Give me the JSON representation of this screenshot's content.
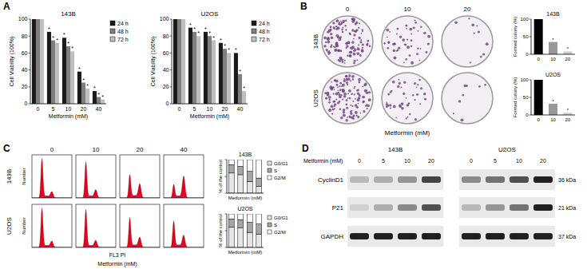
{
  "panel_labels": [
    "A",
    "B",
    "C",
    "D"
  ],
  "chart_data": [
    {
      "type": "bar",
      "title": "143B",
      "categories": [
        "0",
        "5",
        "10",
        "20",
        "40"
      ],
      "series": [
        {
          "name": "24 h",
          "color": "#1a1a1a",
          "values": [
            100,
            85,
            78,
            38,
            15
          ]
        },
        {
          "name": "48 h",
          "color": "#7f7f7f",
          "values": [
            100,
            75,
            68,
            25,
            8
          ]
        },
        {
          "name": "72 h",
          "color": "#bfbfbf",
          "values": [
            100,
            72,
            62,
            18,
            5
          ]
        }
      ],
      "xlabel": "Metformin (mM)",
      "ylabel": "Cell Viability (100%)",
      "ylim": [
        0,
        100
      ],
      "yticks": [
        0,
        20,
        40,
        60,
        80,
        100
      ],
      "legend": "right",
      "annotation": "*"
    },
    {
      "type": "bar",
      "title": "U2OS",
      "categories": [
        "0",
        "5",
        "10",
        "20",
        "40"
      ],
      "series": [
        {
          "name": "24 h",
          "color": "#1a1a1a",
          "values": [
            100,
            90,
            85,
            72,
            60
          ]
        },
        {
          "name": "48 h",
          "color": "#7f7f7f",
          "values": [
            100,
            85,
            80,
            65,
            35
          ]
        },
        {
          "name": "72 h",
          "color": "#bfbfbf",
          "values": [
            100,
            80,
            75,
            60,
            15
          ]
        }
      ],
      "xlabel": "Metformin (mM)",
      "ylabel": "Cell Viability (100%)",
      "ylim": [
        0,
        100
      ],
      "yticks": [
        0,
        20,
        40,
        60,
        80,
        100
      ],
      "legend": "right",
      "annotation": "*"
    },
    {
      "type": "bar",
      "title": "143B",
      "categories": [
        "0",
        "10",
        "20"
      ],
      "values": [
        100,
        35,
        8
      ],
      "colors": [
        "#000000",
        "#999999",
        "#cccccc"
      ],
      "ylabel": "Formed colony (%)",
      "ylim": [
        0,
        100
      ],
      "yticks": [
        0,
        50,
        100
      ],
      "annotation": "*"
    },
    {
      "type": "bar",
      "title": "U2OS",
      "categories": [
        "0",
        "10",
        "20"
      ],
      "values": [
        100,
        32,
        6
      ],
      "colors": [
        "#000000",
        "#999999",
        "#cccccc"
      ],
      "ylabel": "Formed colony (%)",
      "ylim": [
        0,
        100
      ],
      "yticks": [
        0,
        50,
        100
      ],
      "annotation": "*"
    },
    {
      "type": "bar",
      "stacked": true,
      "title": "143B",
      "categories": [
        "0",
        "10",
        "20",
        "40"
      ],
      "series": [
        {
          "name": "G0/G1",
          "color": "#e6e6e6",
          "values": [
            60,
            55,
            35,
            20
          ]
        },
        {
          "name": "S",
          "color": "#a6a6a6",
          "values": [
            25,
            25,
            30,
            25
          ]
        },
        {
          "name": "G2/M",
          "color": "#ffffff",
          "values": [
            15,
            20,
            35,
            55
          ]
        }
      ],
      "xlabel": "Metformin (mM)",
      "ylabel": "% of the control",
      "ylim": [
        0,
        100
      ],
      "yticks": [
        0,
        50,
        100
      ],
      "tick_labels": false,
      "legend": "right"
    },
    {
      "type": "bar",
      "stacked": true,
      "title": "U2OS",
      "categories": [
        "0",
        "10",
        "20",
        "40"
      ],
      "series": [
        {
          "name": "G0/G1",
          "color": "#e6e6e6",
          "values": [
            60,
            58,
            45,
            40
          ]
        },
        {
          "name": "S",
          "color": "#a6a6a6",
          "values": [
            25,
            25,
            30,
            30
          ]
        },
        {
          "name": "G2/M",
          "color": "#ffffff",
          "values": [
            15,
            17,
            25,
            30
          ]
        }
      ],
      "xlabel": "Metformin (mM)",
      "ylabel": "% of the control",
      "ylim": [
        0,
        100
      ],
      "yticks": [
        0,
        50,
        100
      ],
      "tick_labels": false,
      "legend": "right"
    }
  ],
  "colony_panel": {
    "doses": [
      "0",
      "10",
      "20"
    ],
    "cell_lines": [
      "143B",
      "U2OS"
    ],
    "xlabel": "Metformin (mM)"
  },
  "flow_panel": {
    "doses": [
      "0",
      "10",
      "20",
      "40"
    ],
    "cell_lines": [
      "143B",
      "U2OS"
    ],
    "ylabel": "Number",
    "xlabel": "FL3 PI",
    "treatment": "Metformin (mM)"
  },
  "blot_panel": {
    "treatment": "Metformin (mM)",
    "lanes": [
      "0",
      "5",
      "10",
      "20"
    ],
    "cell_lines": [
      "143B",
      "U2OS"
    ],
    "rows": [
      {
        "name": "CyclinD1",
        "size": "36 kDa",
        "bands": [
          [
            0.3,
            0.35,
            0.45,
            0.8
          ],
          [
            0.5,
            0.6,
            0.75,
            0.95
          ]
        ]
      },
      {
        "name": "P21",
        "size": "21 kDa",
        "bands": [
          [
            0.2,
            0.35,
            0.5,
            0.75
          ],
          [
            0.3,
            0.45,
            0.6,
            0.95
          ]
        ]
      },
      {
        "name": "GAPDH",
        "size": "37 kDa",
        "bands": [
          [
            0.95,
            0.95,
            0.95,
            0.95
          ],
          [
            0.95,
            0.95,
            0.95,
            0.95
          ]
        ]
      }
    ]
  }
}
